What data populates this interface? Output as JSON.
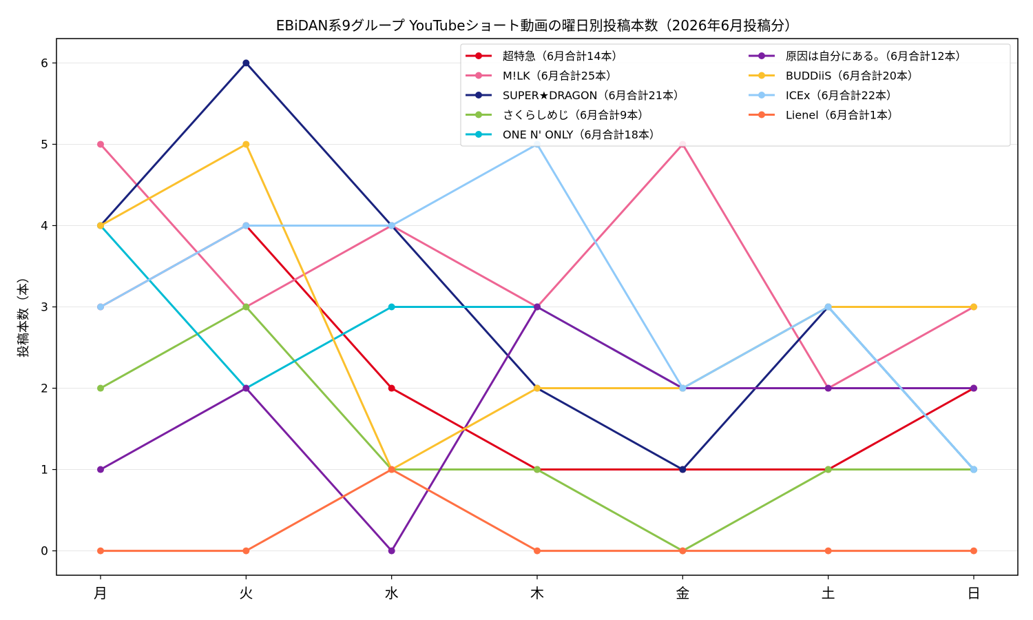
{
  "chart_data": {
    "type": "line",
    "title": "EBiDAN系9グループ YouTubeショート動画の曜日別投稿本数（2026年6月投稿分）",
    "xlabel": "",
    "ylabel": "投稿本数（本）",
    "categories": [
      "月",
      "火",
      "水",
      "木",
      "金",
      "土",
      "日"
    ],
    "ylim": [
      -0.3,
      6.3
    ],
    "yticks": [
      0,
      1,
      2,
      3,
      4,
      5,
      6
    ],
    "grid": "horizontal",
    "legend_position": "top-right",
    "series": [
      {
        "name": "超特急（6月合計14本）",
        "color": "#e0001b",
        "values": [
          3,
          4,
          2,
          1,
          1,
          1,
          2
        ]
      },
      {
        "name": "M!LK（6月合計25本）",
        "color": "#ee6694",
        "values": [
          5,
          3,
          4,
          3,
          5,
          2,
          3
        ]
      },
      {
        "name": "SUPER★DRAGON（6月合計21本）",
        "color": "#1a237e",
        "values": [
          4,
          6,
          4,
          2,
          1,
          3,
          1
        ]
      },
      {
        "name": "さくらしめじ（6月合計9本）",
        "color": "#8bc34a",
        "values": [
          2,
          3,
          1,
          1,
          0,
          1,
          1
        ]
      },
      {
        "name": "ONE N' ONLY（6月合計18本）",
        "color": "#00bcd4",
        "values": [
          4,
          2,
          3,
          3,
          2,
          3,
          1
        ]
      },
      {
        "name": "原因は自分にある。（6月合計12本）",
        "color": "#7b1fa2",
        "values": [
          1,
          2,
          0,
          3,
          2,
          2,
          2
        ]
      },
      {
        "name": "BUDDiiS（6月合計20本）",
        "color": "#fbc02d",
        "values": [
          4,
          5,
          1,
          2,
          2,
          3,
          3
        ]
      },
      {
        "name": "ICEx（6月合計22本）",
        "color": "#90caf9",
        "values": [
          3,
          4,
          4,
          5,
          2,
          3,
          1
        ]
      },
      {
        "name": "Lienel（6月合計1本）",
        "color": "#ff7043",
        "values": [
          0,
          0,
          1,
          0,
          0,
          0,
          0
        ]
      }
    ]
  }
}
